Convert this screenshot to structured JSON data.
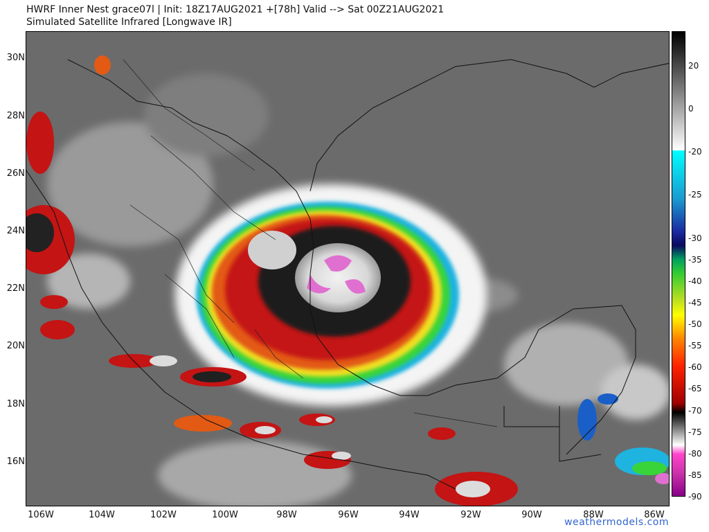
{
  "header": {
    "line1": "HWRF Inner Nest  grace07l | Init: 18Z17AUG2021 +[78h] Valid --> Sat 00Z21AUG2021",
    "line2": "Simulated Satellite Infrared [Longwave IR]"
  },
  "map": {
    "lat_labels": [
      "30N",
      "28N",
      "26N",
      "24N",
      "22N",
      "20N",
      "18N",
      "16N"
    ],
    "lon_labels": [
      "106W",
      "104W",
      "102W",
      "100W",
      "98W",
      "96W",
      "94W",
      "92W",
      "90W",
      "88W",
      "86W"
    ]
  },
  "colorbar": {
    "labels": [
      "20",
      "0",
      "-20",
      "-25",
      "-30",
      "-35",
      "-40",
      "-45",
      "-50",
      "-55",
      "-60",
      "-65",
      "-70",
      "-75",
      "-80",
      "-85",
      "-90"
    ]
  },
  "credit": "weathermodels.com"
}
